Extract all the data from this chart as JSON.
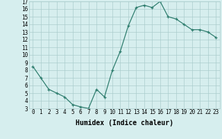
{
  "x": [
    0,
    1,
    2,
    3,
    4,
    5,
    6,
    7,
    8,
    9,
    10,
    11,
    12,
    13,
    14,
    15,
    16,
    17,
    18,
    19,
    20,
    21,
    22,
    23
  ],
  "y": [
    8.5,
    7.0,
    5.5,
    5.0,
    4.5,
    3.5,
    3.2,
    3.0,
    5.5,
    4.5,
    8.0,
    10.5,
    13.8,
    16.2,
    16.5,
    16.2,
    17.0,
    15.0,
    14.7,
    14.0,
    13.3,
    13.3,
    13.0,
    12.3
  ],
  "xlabel": "Humidex (Indice chaleur)",
  "xlim": [
    -0.5,
    23.5
  ],
  "ylim": [
    3,
    17
  ],
  "xticks": [
    0,
    1,
    2,
    3,
    4,
    5,
    6,
    7,
    8,
    9,
    10,
    11,
    12,
    13,
    14,
    15,
    16,
    17,
    18,
    19,
    20,
    21,
    22,
    23
  ],
  "yticks": [
    3,
    4,
    5,
    6,
    7,
    8,
    9,
    10,
    11,
    12,
    13,
    14,
    15,
    16,
    17
  ],
  "line_color": "#2e7d6e",
  "bg_color": "#d6eeee",
  "grid_color": "#aacccc",
  "label_fontsize": 7,
  "tick_fontsize": 5.5
}
